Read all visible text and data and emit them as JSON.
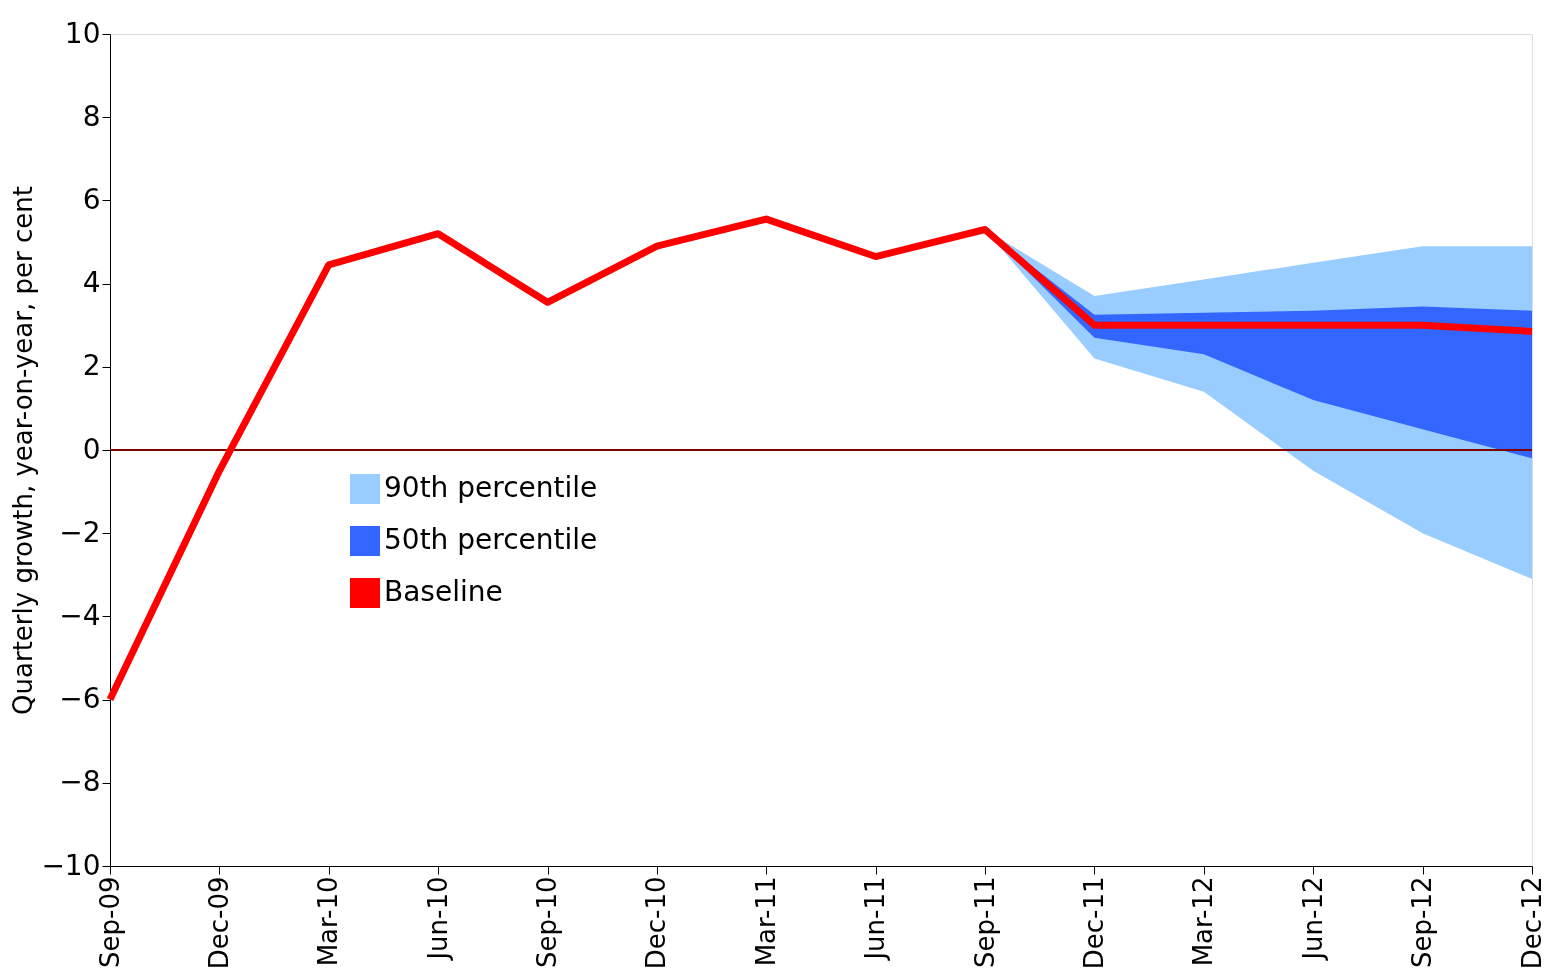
{
  "chart_data": {
    "type": "line",
    "ylabel": "Quarterly growth, year-on-year, per cent",
    "categories": [
      "Sep-09",
      "Dec-09",
      "Mar-10",
      "Jun-10",
      "Sep-10",
      "Dec-10",
      "Mar-11",
      "Jun-11",
      "Sep-11",
      "Dec-11",
      "Mar-12",
      "Jun-12",
      "Sep-12",
      "Dec-12"
    ],
    "series": [
      {
        "name": "90th percentile",
        "color": "#99ccff",
        "values": [
          null,
          null,
          null,
          null,
          null,
          null,
          null,
          null,
          null,
          null,
          null,
          null,
          null,
          null
        ],
        "lower": [
          null,
          null,
          null,
          null,
          null,
          null,
          null,
          null,
          5.3,
          2.2,
          1.4,
          -0.5,
          -2.0,
          -3.1
        ],
        "upper": [
          null,
          null,
          null,
          null,
          null,
          null,
          null,
          null,
          5.3,
          3.7,
          4.1,
          4.5,
          4.9,
          4.9
        ]
      },
      {
        "name": "50th percentile",
        "color": "#3366ff",
        "values": [
          null,
          null,
          null,
          null,
          null,
          null,
          null,
          null,
          null,
          null,
          null,
          null,
          null,
          null
        ],
        "lower": [
          null,
          null,
          null,
          null,
          null,
          null,
          null,
          null,
          5.3,
          2.7,
          2.3,
          1.2,
          0.5,
          -0.2
        ],
        "upper": [
          null,
          null,
          null,
          null,
          null,
          null,
          null,
          null,
          5.3,
          3.25,
          3.3,
          3.35,
          3.45,
          3.35
        ]
      },
      {
        "name": "Baseline",
        "type": "line",
        "color": "#ff0000",
        "values": [
          -6.0,
          -0.5,
          4.45,
          5.2,
          3.55,
          4.9,
          5.55,
          4.65,
          5.3,
          3.0,
          3.0,
          3.0,
          3.0,
          2.85
        ]
      }
    ],
    "ylim": [
      -10,
      10
    ],
    "yticks": [
      -10,
      -8,
      -6,
      -4,
      -2,
      0,
      2,
      4,
      6,
      8,
      10
    ],
    "ref_lines": [
      {
        "axis": "y",
        "value": 0,
        "color": "#800000"
      }
    ],
    "grid": false,
    "legend": "left",
    "marker": "none",
    "line_style": "solid"
  }
}
